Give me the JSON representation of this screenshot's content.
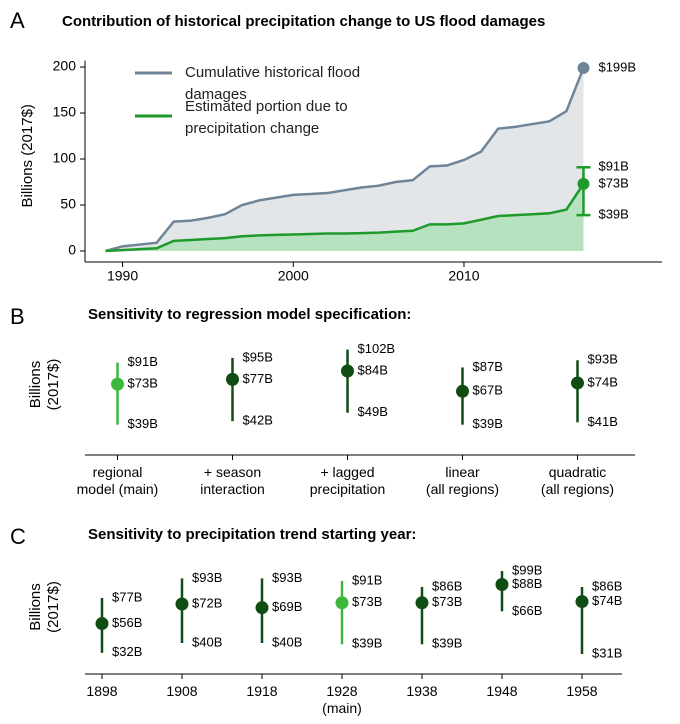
{
  "chart_data": [
    {
      "type": "line",
      "panel": "A",
      "title": "Contribution of historical precipitation change to US flood damages",
      "ylabel": "Billions (2017$)",
      "x": [
        1989,
        1990,
        1991,
        1992,
        1993,
        1994,
        1995,
        1996,
        1997,
        1998,
        1999,
        2000,
        2001,
        2002,
        2003,
        2004,
        2005,
        2006,
        2007,
        2008,
        2009,
        2010,
        2011,
        2012,
        2013,
        2014,
        2015,
        2016,
        2017
      ],
      "xlim": [
        1987.8,
        2021.6
      ],
      "xticks": [
        1990,
        2000,
        2010
      ],
      "ylim": [
        0,
        207
      ],
      "yticks": [
        0,
        50,
        100,
        150,
        200
      ],
      "series": [
        {
          "name": "Cumulative historical flood damages",
          "color": "#6f8597",
          "area_color": "#e3e6e9",
          "values": [
            0,
            5,
            7,
            9,
            32,
            33,
            36,
            40,
            50,
            55,
            58,
            61,
            62,
            63,
            66,
            69,
            71,
            75,
            77,
            92,
            93,
            99,
            108,
            133,
            135,
            138,
            141,
            152,
            199
          ],
          "value_labels": [
            null,
            null,
            null,
            null,
            null,
            null,
            null,
            null,
            null,
            null,
            null,
            null,
            null,
            null,
            null,
            null,
            null,
            null,
            null,
            null,
            null,
            null,
            null,
            null,
            null,
            null,
            null,
            null,
            "$199B"
          ]
        },
        {
          "name": "Estimated portion due to precipitation change",
          "color": "#1f9a2a",
          "area_color": "#b6e2bf",
          "values": [
            0,
            1,
            2,
            3,
            11,
            12,
            13,
            14,
            16,
            17,
            17.5,
            18,
            18.5,
            19,
            19,
            19.5,
            20,
            21,
            22,
            29,
            29,
            30,
            34,
            38,
            39,
            40,
            41,
            45,
            73
          ],
          "value_labels": [
            null,
            null,
            null,
            null,
            null,
            null,
            null,
            null,
            null,
            null,
            null,
            null,
            null,
            null,
            null,
            null,
            null,
            null,
            null,
            null,
            null,
            null,
            null,
            null,
            null,
            null,
            null,
            null,
            "$73B"
          ],
          "error": {
            "low": 39,
            "high": 91,
            "low_label": "$39B",
            "high_label": "$91B"
          }
        }
      ]
    },
    {
      "type": "errorbar",
      "panel": "B",
      "title": "Sensitivity to regression model specification:",
      "ylabel": [
        "Billions",
        "(2017$)"
      ],
      "categories": [
        [
          "regional",
          "model (main)"
        ],
        [
          "+ season",
          "interaction"
        ],
        [
          "+ lagged",
          "precipitation"
        ],
        [
          "linear",
          "(all regions)"
        ],
        [
          "quadratic",
          "(all regions)"
        ]
      ],
      "ylim": [
        22,
        110
      ],
      "values": [
        73,
        77,
        84,
        67,
        74
      ],
      "value_labels": [
        "$73B",
        "$77B",
        "$84B",
        "$67B",
        "$74B"
      ],
      "low": [
        39,
        42,
        49,
        39,
        41
      ],
      "low_labels": [
        "$39B",
        "$42B",
        "$49B",
        "$39B",
        "$41B"
      ],
      "high": [
        91,
        95,
        102,
        87,
        93
      ],
      "high_labels": [
        "$91B",
        "$95B",
        "$102B",
        "$87B",
        "$93B"
      ],
      "colors": [
        "#3cb83c",
        "#0f4d12",
        "#0f4d12",
        "#0f4d12",
        "#0f4d12"
      ]
    },
    {
      "type": "errorbar",
      "panel": "C",
      "title": "Sensitivity to precipitation trend starting year:",
      "ylabel": [
        "Billions",
        "(2017$)"
      ],
      "categories": [
        [
          "1898"
        ],
        [
          "1908"
        ],
        [
          "1918"
        ],
        [
          "1928",
          "(main)"
        ],
        [
          "1938"
        ],
        [
          "1948"
        ],
        [
          "1958"
        ]
      ],
      "ylim": [
        22,
        104
      ],
      "values": [
        56,
        72,
        69,
        73,
        73,
        88,
        74
      ],
      "value_labels": [
        "$56B",
        "$72B",
        "$69B",
        "$73B",
        "$73B",
        "$88B",
        "$74B"
      ],
      "low": [
        32,
        40,
        40,
        39,
        39,
        66,
        31
      ],
      "low_labels": [
        "$32B",
        "$40B",
        "$40B",
        "$39B",
        "$39B",
        "$66B",
        "$31B"
      ],
      "high": [
        77,
        93,
        93,
        91,
        86,
        99,
        86
      ],
      "high_labels": [
        "$77B",
        "$93B",
        "$93B",
        "$91B",
        "$86B",
        "$99B",
        "$86B"
      ],
      "colors": [
        "#0f4d12",
        "#0f4d12",
        "#0f4d12",
        "#3cb83c",
        "#0f4d12",
        "#0f4d12",
        "#0f4d12"
      ]
    }
  ]
}
